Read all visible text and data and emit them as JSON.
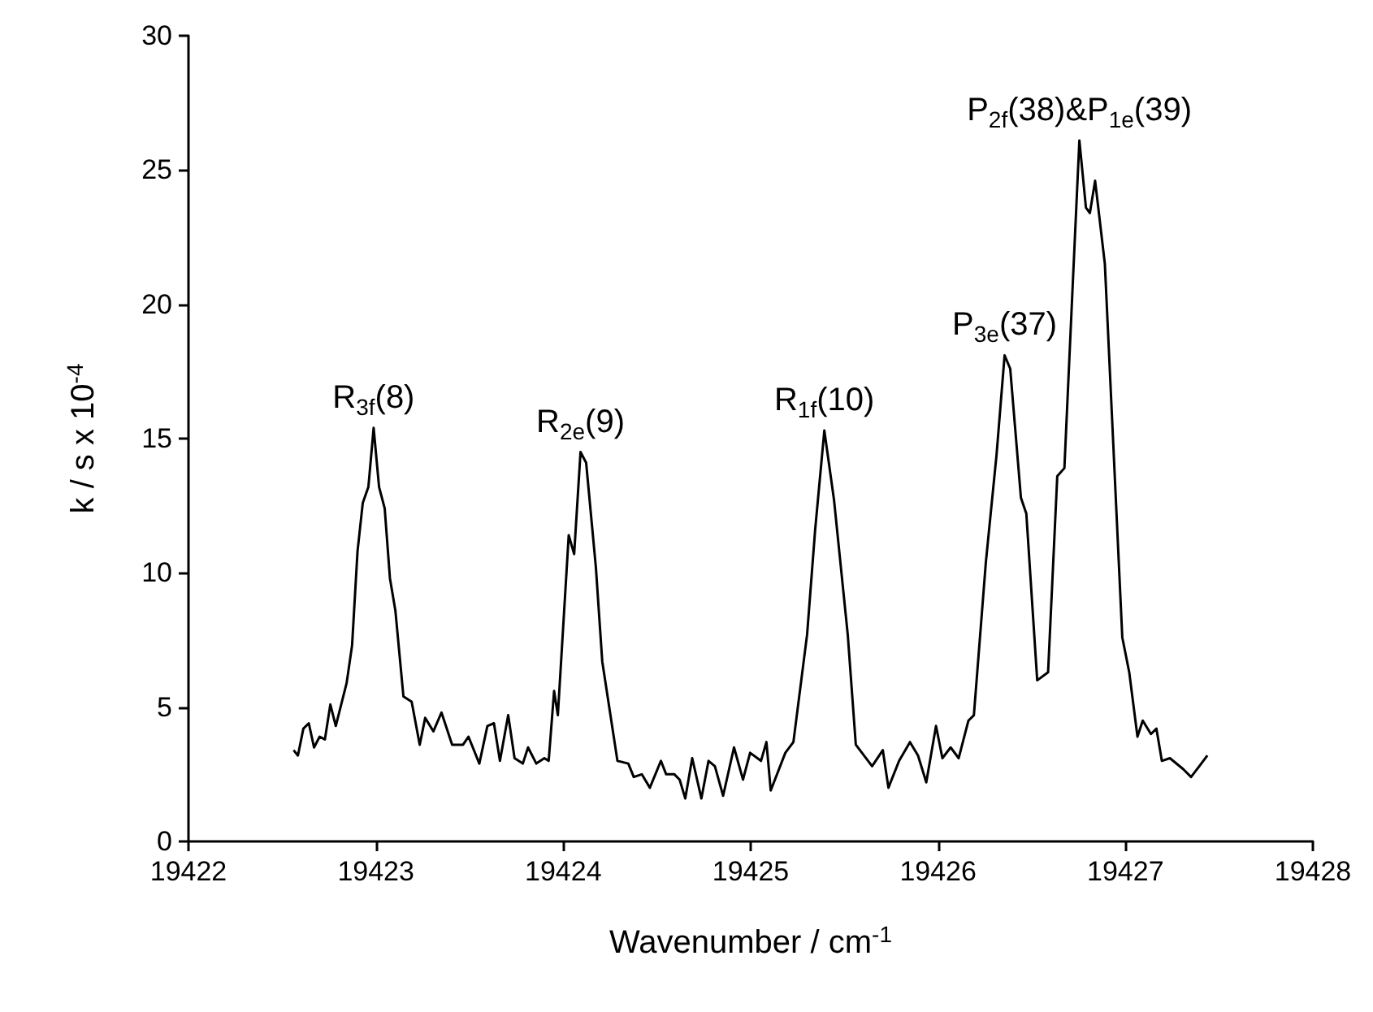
{
  "chart_data": {
    "type": "line",
    "xlabel": "Wavenumber / cm$^{-1}$",
    "ylabel": "k / s x 10$^{-4}$",
    "xlim": [
      19422,
      19428
    ],
    "xticks": [
      19422,
      19423,
      19424,
      19425,
      19426,
      19427,
      19428
    ],
    "ylim": [
      0,
      30
    ],
    "yticks": [
      0,
      5,
      10,
      15,
      20,
      25,
      30
    ],
    "grid": false,
    "marker": "none",
    "line_style": "solid",
    "x": [
      19422.561,
      19422.584,
      19422.613,
      19422.642,
      19422.67,
      19422.7,
      19422.728,
      19422.757,
      19422.786,
      19422.844,
      19422.873,
      19422.902,
      19422.93,
      19422.96,
      19422.988,
      19423.017,
      19423.047,
      19423.075,
      19423.104,
      19423.147,
      19423.191,
      19423.234,
      19423.263,
      19423.307,
      19423.35,
      19423.407,
      19423.465,
      19423.494,
      19423.552,
      19423.595,
      19423.63,
      19423.662,
      19423.706,
      19423.74,
      19423.784,
      19423.812,
      19423.856,
      19423.899,
      19423.922,
      19423.951,
      19423.971,
      19424.029,
      19424.058,
      19424.092,
      19424.122,
      19424.174,
      19424.208,
      19424.289,
      19424.347,
      19424.376,
      19424.419,
      19424.462,
      19424.521,
      19424.549,
      19424.593,
      19424.621,
      19424.651,
      19424.688,
      19424.737,
      19424.775,
      19424.809,
      19424.853,
      19424.911,
      19424.959,
      19424.997,
      19425.055,
      19425.084,
      19425.107,
      19425.185,
      19425.228,
      19425.301,
      19425.344,
      19425.393,
      19425.445,
      19425.518,
      19425.561,
      19425.648,
      19425.705,
      19425.735,
      19425.792,
      19425.85,
      19425.893,
      19425.937,
      19425.989,
      19426.023,
      19426.067,
      19426.11,
      19426.162,
      19426.191,
      19426.255,
      19426.312,
      19426.355,
      19426.385,
      19426.442,
      19426.471,
      19426.529,
      19426.587,
      19426.636,
      19426.674,
      19426.717,
      19426.754,
      19426.789,
      19426.81,
      19426.838,
      19426.89,
      19426.983,
      19427.02,
      19427.064,
      19427.092,
      19427.136,
      19427.165,
      19427.194,
      19427.237,
      19427.307,
      19427.35,
      19427.394,
      19427.437
    ],
    "series": [
      {
        "color": "#000000",
        "values": [
          3.4,
          3.2,
          4.2,
          4.4,
          3.5,
          3.9,
          3.8,
          5.1,
          4.3,
          5.9,
          7.3,
          10.8,
          12.6,
          13.2,
          15.4,
          13.2,
          12.4,
          9.8,
          8.6,
          5.4,
          5.2,
          3.6,
          4.6,
          4.1,
          4.8,
          3.6,
          3.6,
          3.9,
          2.9,
          4.3,
          4.4,
          3.0,
          4.7,
          3.1,
          2.9,
          3.5,
          2.9,
          3.1,
          3.0,
          5.6,
          4.7,
          11.4,
          10.7,
          14.5,
          14.1,
          10.2,
          6.7,
          3.0,
          2.9,
          2.4,
          2.5,
          2.0,
          3.0,
          2.5,
          2.5,
          2.3,
          1.6,
          3.1,
          1.6,
          3.0,
          2.8,
          1.7,
          3.5,
          2.3,
          3.3,
          3.0,
          3.7,
          1.9,
          3.3,
          3.7,
          7.7,
          11.6,
          15.3,
          12.7,
          7.7,
          3.6,
          2.8,
          3.4,
          2.0,
          3.0,
          3.7,
          3.2,
          2.2,
          4.3,
          3.1,
          3.5,
          3.1,
          4.5,
          4.7,
          10.4,
          14.4,
          18.1,
          17.6,
          12.8,
          12.2,
          6.0,
          6.3,
          13.6,
          13.9,
          20.5,
          26.1,
          23.6,
          23.4,
          24.6,
          21.5,
          7.6,
          6.3,
          3.9,
          4.5,
          4.0,
          4.2,
          3.0,
          3.1,
          2.7,
          2.4,
          2.8,
          3.2
        ]
      }
    ],
    "annotations": [
      {
        "text": "R$_{3f}$(8)",
        "x": 19422.988,
        "y": 15.4
      },
      {
        "text": "R$_{2e}$(9)",
        "x": 19424.092,
        "y": 14.5
      },
      {
        "text": "R$_{1f}$(10)",
        "x": 19425.393,
        "y": 15.3
      },
      {
        "text": "P$_{3e}$(37)",
        "x": 19426.355,
        "y": 18.1
      },
      {
        "text": "P$_{2f}$(38)&P$_{1e}$(39)",
        "x": 19426.754,
        "y": 26.1
      }
    ]
  }
}
